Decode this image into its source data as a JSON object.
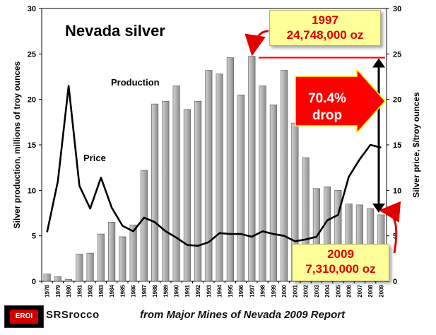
{
  "chart_data": {
    "type": "bar",
    "title": "Nevada silver",
    "ylabel": "Silver production, millions of troy ounces",
    "y2label": "Silver price, $/troy ounces",
    "ylim": [
      0,
      30
    ],
    "y2lim": [
      0,
      30
    ],
    "yticks": [
      "0",
      "5",
      "10",
      "15",
      "20",
      "25",
      "30"
    ],
    "categories": [
      "1978",
      "1979",
      "1980",
      "1981",
      "1982",
      "1983",
      "1984",
      "1985",
      "1986",
      "1987",
      "1988",
      "1989",
      "1990",
      "1991",
      "1992",
      "1993",
      "1994",
      "1995",
      "1996",
      "1997",
      "1998",
      "1999",
      "2000",
      "2001",
      "2002",
      "2003",
      "2004",
      "2005",
      "2006",
      "2007",
      "2008",
      "2009"
    ],
    "series": [
      {
        "name": "Production",
        "type": "bar",
        "values": [
          0.8,
          0.5,
          0.2,
          3.0,
          3.1,
          5.2,
          6.5,
          4.9,
          6.2,
          12.2,
          19.5,
          19.8,
          21.5,
          18.9,
          19.8,
          23.2,
          22.8,
          24.6,
          20.5,
          24.75,
          21.5,
          19.4,
          23.2,
          17.4,
          13.6,
          10.2,
          10.4,
          10.0,
          8.5,
          8.4,
          8.0,
          7.31
        ]
      },
      {
        "name": "Price",
        "type": "line",
        "axis": "right",
        "values": [
          5.4,
          11.0,
          21.5,
          10.5,
          8.0,
          11.4,
          8.1,
          6.1,
          5.5,
          7.0,
          6.5,
          5.5,
          4.8,
          4.0,
          3.9,
          4.3,
          5.3,
          5.2,
          5.2,
          4.9,
          5.5,
          5.2,
          5.0,
          4.4,
          4.6,
          4.9,
          6.7,
          7.3,
          11.5,
          13.4,
          15.0,
          14.7
        ]
      }
    ],
    "annotations": {
      "peak_year": "1997",
      "peak_value": "24,748,000 oz",
      "low_year": "2009",
      "low_value": "7,310,000 oz",
      "drop_line1": "70.4%",
      "drop_line2": "drop"
    }
  },
  "footer": {
    "logo": "EROI",
    "brand": "SRSrocco",
    "source": "from Major Mines of Nevada 2009 Report"
  },
  "colors": {
    "bar": "#b4b4b4",
    "line": "#000000",
    "callout_text": "#e00000",
    "callout_bg": "#ffff99",
    "arrow": "#ff0000"
  }
}
